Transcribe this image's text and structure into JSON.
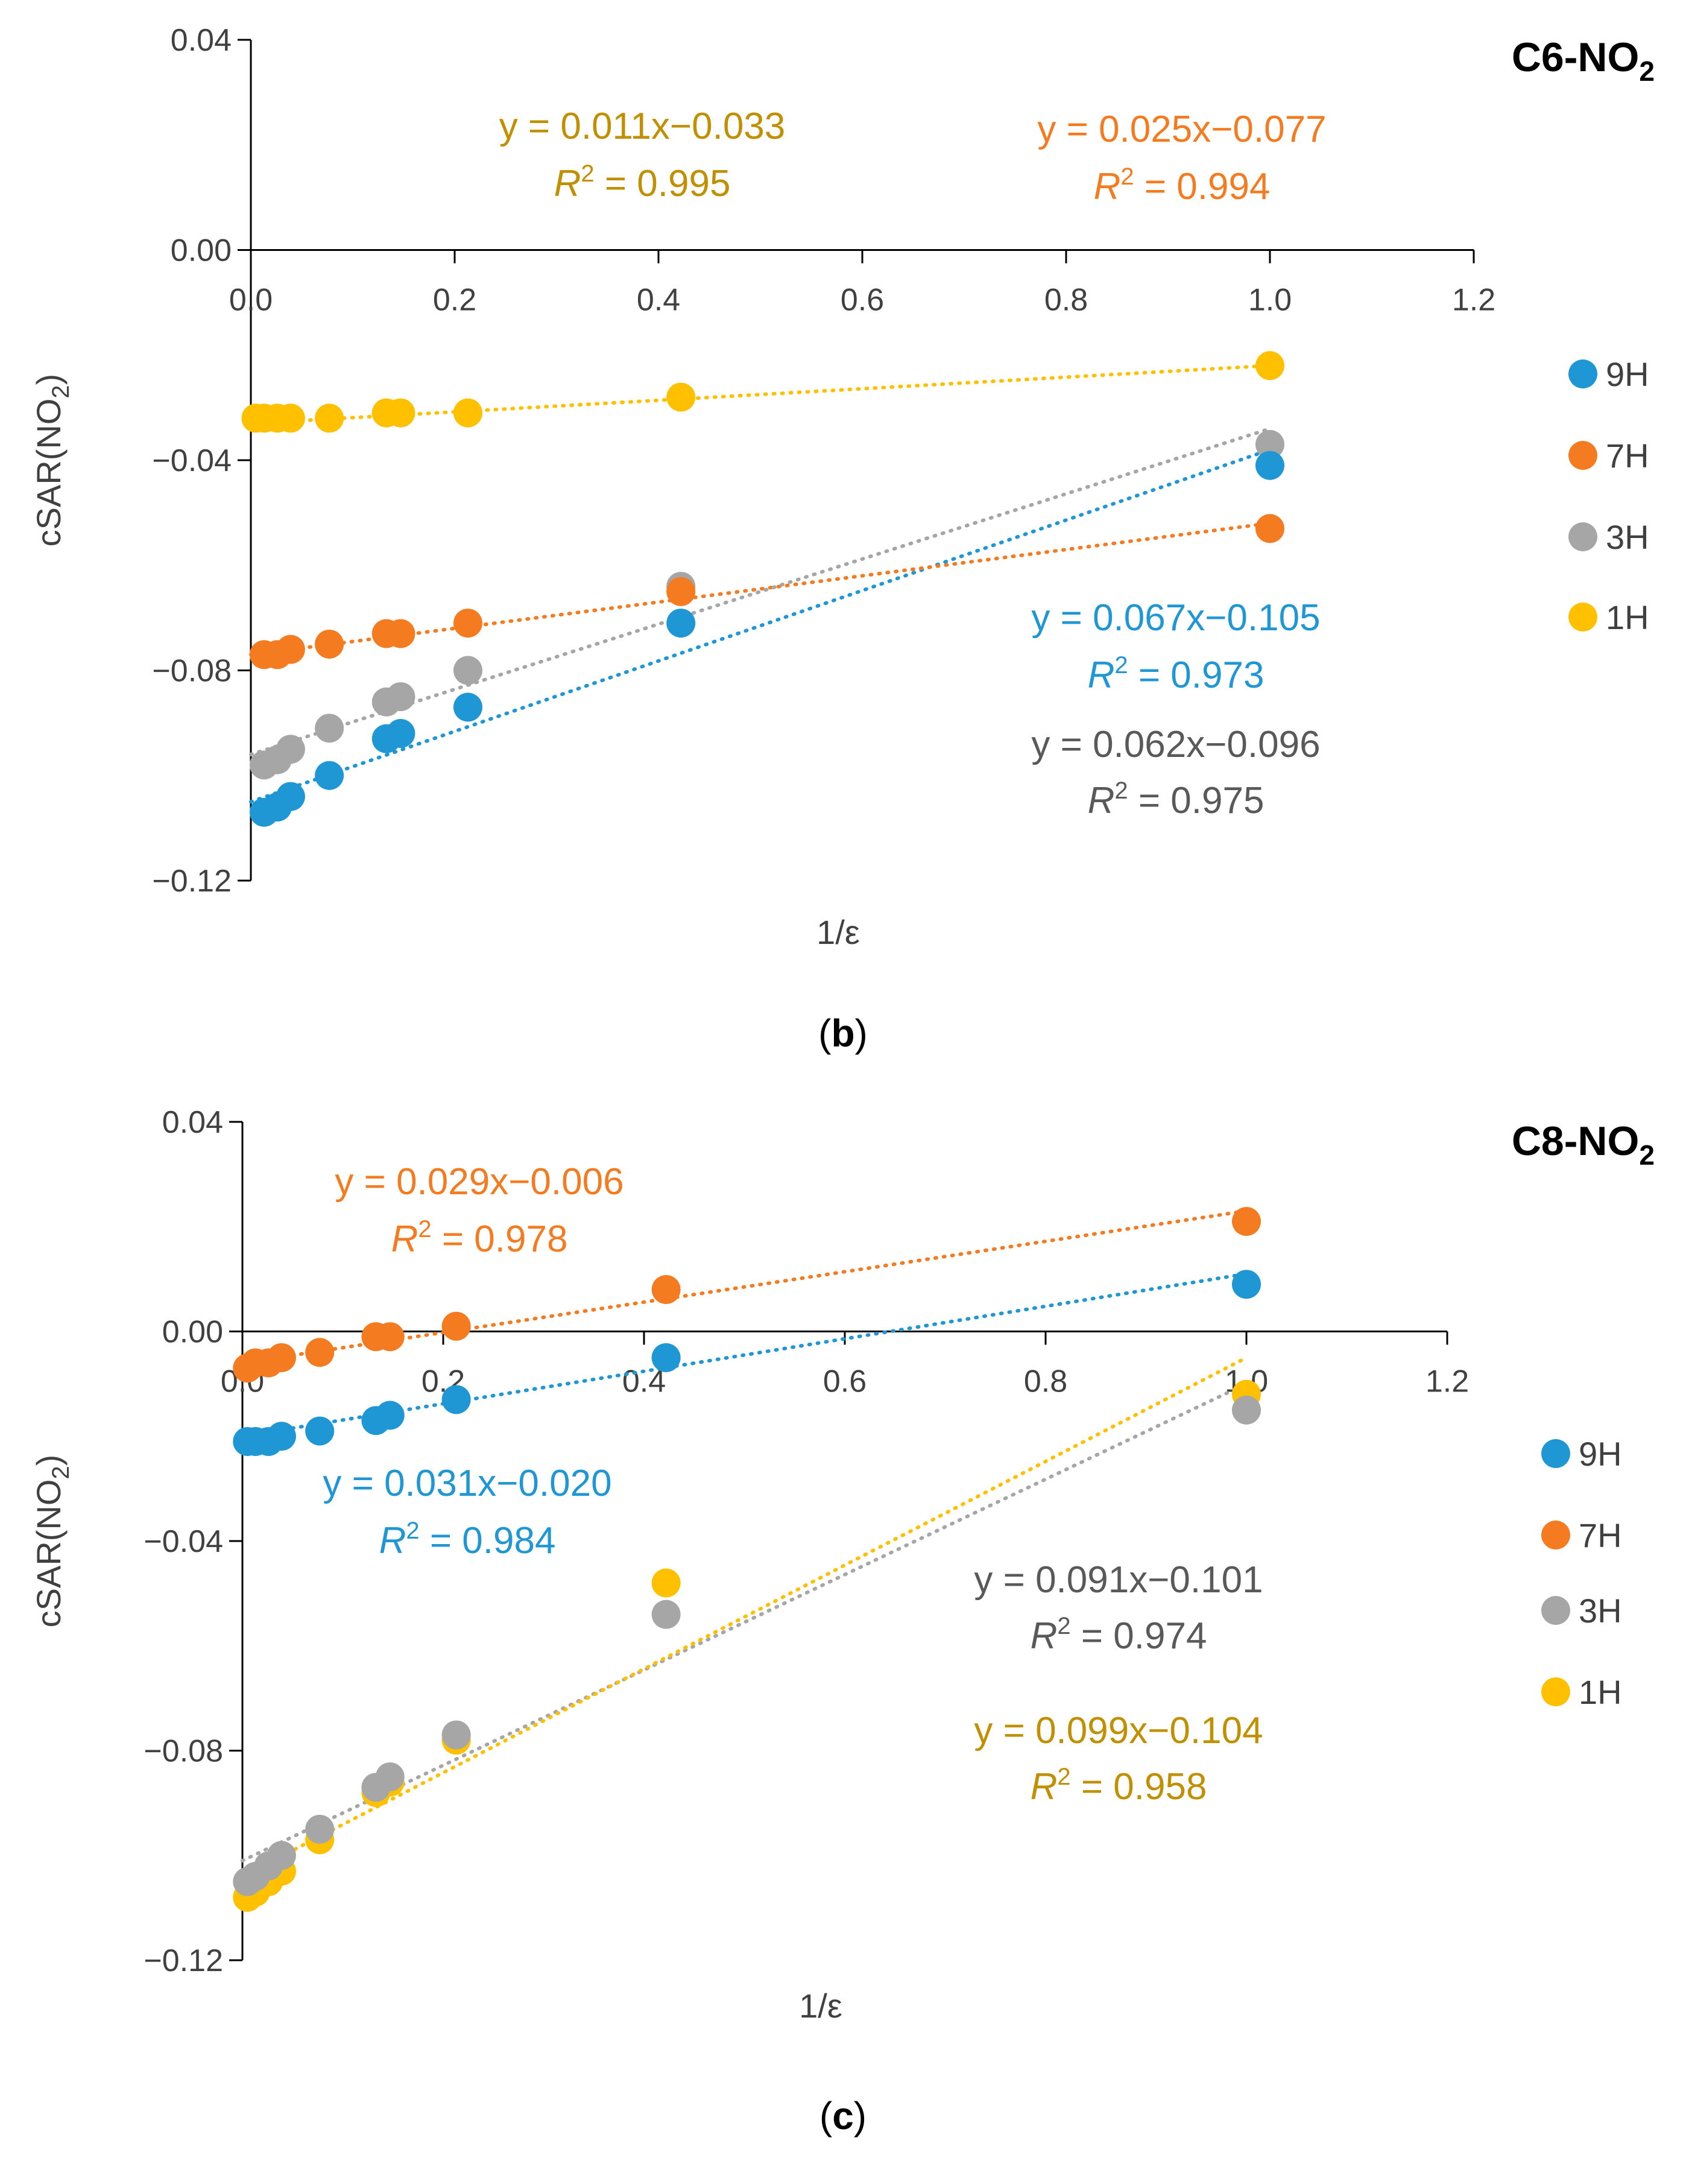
{
  "colors": {
    "9H": "#1f97d4",
    "7H": "#f47b20",
    "3H": "#a6a6a6",
    "1H": "#ffc000"
  },
  "chart_data": [
    {
      "type": "scatter",
      "panel": "b",
      "caption_letter": "b",
      "title_main": "C6-NO",
      "title_sub": "2",
      "xlabel": "1/ε",
      "ylabel_main": "cSAR(NO",
      "ylabel_sub": "2",
      "ylabel_close": ")",
      "xlim": [
        0,
        1.2
      ],
      "ylim": [
        -0.12,
        0.04
      ],
      "xticks": [
        "0.0",
        "0.2",
        "0.4",
        "0.6",
        "0.8",
        "1.0",
        "1.2"
      ],
      "yticks": [
        "0.04",
        "0.00",
        "−0.04",
        "−0.08",
        "−0.12"
      ],
      "series": [
        {
          "name": "9H",
          "x": [
            0.013,
            0.026,
            0.039,
            0.077,
            0.133,
            0.147,
            0.213,
            0.422,
            1.0
          ],
          "y": [
            -0.107,
            -0.106,
            -0.104,
            -0.1,
            -0.093,
            -0.092,
            -0.087,
            -0.071,
            -0.041
          ],
          "trend": [
            0.067,
            -0.105
          ],
          "eq": "y = 0.067x−0.105",
          "r2": " = 0.973"
        },
        {
          "name": "7H",
          "x": [
            0.013,
            0.026,
            0.039,
            0.077,
            0.133,
            0.147,
            0.213,
            0.422,
            1.0
          ],
          "y": [
            -0.077,
            -0.077,
            -0.076,
            -0.075,
            -0.073,
            -0.073,
            -0.071,
            -0.065,
            -0.053
          ],
          "trend": [
            0.025,
            -0.077
          ],
          "eq": "y = 0.025x−0.077",
          "r2": " = 0.994"
        },
        {
          "name": "3H",
          "x": [
            0.013,
            0.026,
            0.039,
            0.077,
            0.133,
            0.147,
            0.213,
            0.422,
            1.0
          ],
          "y": [
            -0.098,
            -0.097,
            -0.095,
            -0.091,
            -0.086,
            -0.085,
            -0.08,
            -0.064,
            -0.037
          ],
          "trend": [
            0.062,
            -0.096
          ],
          "eq": "y = 0.062x−0.096",
          "r2": " = 0.975"
        },
        {
          "name": "1H",
          "x": [
            0.005,
            0.013,
            0.026,
            0.039,
            0.077,
            0.133,
            0.147,
            0.213,
            0.422,
            1.0
          ],
          "y": [
            -0.032,
            -0.032,
            -0.032,
            -0.032,
            -0.032,
            -0.031,
            -0.031,
            -0.031,
            -0.028,
            -0.022
          ],
          "trend": [
            0.011,
            -0.033
          ],
          "eq": "y = 0.011x−0.033",
          "r2": " = 0.995"
        }
      ]
    },
    {
      "type": "scatter",
      "panel": "c",
      "caption_letter": "c",
      "title_main": "C8-NO",
      "title_sub": "2",
      "xlabel": "1/ε",
      "ylabel_main": "cSAR(NO",
      "ylabel_sub": "2",
      "ylabel_close": ")",
      "xlim": [
        0,
        1.2
      ],
      "ylim": [
        -0.12,
        0.04
      ],
      "xticks": [
        "0.0",
        "0.2",
        "0.4",
        "0.6",
        "0.8",
        "1.0",
        "1.2"
      ],
      "yticks": [
        "0.04",
        "0.00",
        "−0.04",
        "−0.08",
        "−0.12"
      ],
      "series": [
        {
          "name": "9H",
          "x": [
            0.005,
            0.013,
            0.026,
            0.039,
            0.077,
            0.133,
            0.147,
            0.213,
            0.422,
            1.0
          ],
          "y": [
            -0.021,
            -0.021,
            -0.021,
            -0.02,
            -0.019,
            -0.017,
            -0.016,
            -0.013,
            -0.005,
            0.009
          ],
          "trend": [
            0.031,
            -0.02
          ],
          "eq": "y = 0.031x−0.020",
          "r2": " = 0.984"
        },
        {
          "name": "7H",
          "x": [
            0.005,
            0.013,
            0.026,
            0.039,
            0.077,
            0.133,
            0.147,
            0.213,
            0.422,
            1.0
          ],
          "y": [
            -0.007,
            -0.006,
            -0.006,
            -0.005,
            -0.004,
            -0.001,
            -0.001,
            0.001,
            0.008,
            0.021
          ],
          "trend": [
            0.029,
            -0.006
          ],
          "eq": "y = 0.029x−0.006",
          "r2": " = 0.978"
        },
        {
          "name": "3H",
          "x": [
            0.005,
            0.013,
            0.026,
            0.039,
            0.077,
            0.133,
            0.147,
            0.213,
            0.422,
            1.0
          ],
          "y": [
            -0.105,
            -0.104,
            -0.102,
            -0.1,
            -0.095,
            -0.087,
            -0.085,
            -0.077,
            -0.054,
            -0.015
          ],
          "trend": [
            0.091,
            -0.101
          ],
          "eq": "y = 0.091x−0.101",
          "r2": " = 0.974"
        },
        {
          "name": "1H",
          "x": [
            0.005,
            0.013,
            0.026,
            0.039,
            0.077,
            0.133,
            0.147,
            0.213,
            0.422,
            1.0
          ],
          "y": [
            -0.108,
            -0.107,
            -0.105,
            -0.103,
            -0.097,
            -0.088,
            -0.086,
            -0.078,
            -0.048,
            -0.012
          ],
          "trend": [
            0.099,
            -0.104
          ],
          "eq": "y = 0.099x−0.104",
          "r2": " = 0.958"
        }
      ]
    }
  ]
}
